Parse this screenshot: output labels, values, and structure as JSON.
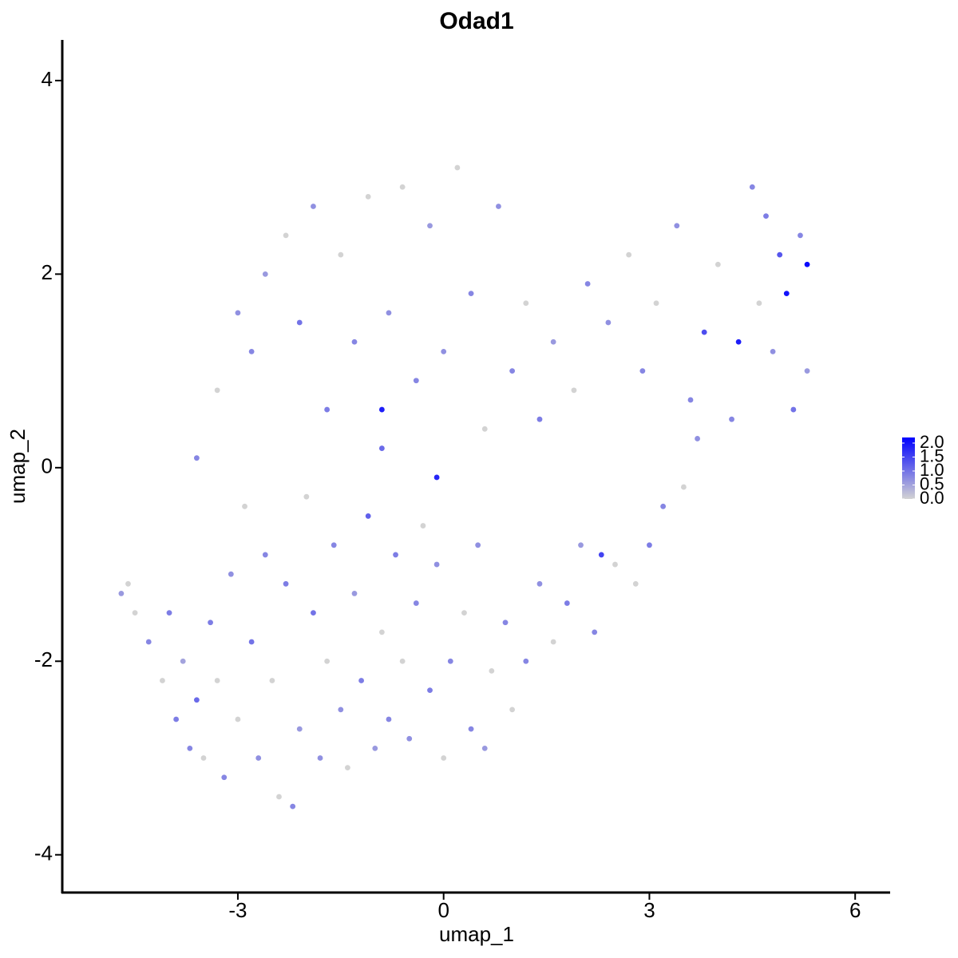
{
  "chart_data": {
    "type": "scatter",
    "title": "Odad1",
    "x_label": "umap_1",
    "y_label": "umap_2",
    "x": [
      -4.7,
      -4.6,
      -4.5,
      -4.3,
      -4.1,
      -4.0,
      -3.9,
      -3.8,
      -3.7,
      -3.6,
      -3.5,
      -3.4,
      -3.3,
      -3.2,
      -3.1,
      -3.0,
      -2.9,
      -2.8,
      -2.7,
      -2.6,
      -2.5,
      -2.4,
      -2.3,
      -2.2,
      -2.1,
      -2.0,
      -1.9,
      -1.8,
      -1.7,
      -1.6,
      -1.5,
      -1.4,
      -1.3,
      -1.2,
      -1.1,
      -1.0,
      -0.9,
      -0.8,
      -0.7,
      -0.6,
      -0.5,
      -0.4,
      -0.3,
      -0.2,
      -0.1,
      0.0,
      0.1,
      0.3,
      0.4,
      0.5,
      0.6,
      0.7,
      0.9,
      1.0,
      1.2,
      1.4,
      1.6,
      1.8,
      2.0,
      2.2,
      2.5,
      2.8,
      3.0,
      3.2,
      3.5,
      3.7,
      -3.6,
      -3.3,
      -3.0,
      -2.8,
      -2.6,
      -2.3,
      -2.1,
      -1.9,
      -1.7,
      -1.5,
      -1.3,
      -1.1,
      -0.9,
      -0.8,
      -0.6,
      -0.4,
      -0.2,
      0.0,
      0.2,
      0.4,
      0.6,
      0.8,
      1.0,
      1.2,
      1.4,
      1.6,
      1.9,
      2.1,
      2.4,
      2.7,
      2.9,
      3.1,
      3.4,
      3.6,
      3.8,
      4.0,
      4.2,
      4.3,
      4.5,
      4.6,
      4.7,
      4.8,
      4.9,
      5.0,
      5.1,
      5.2,
      5.3,
      5.3,
      -0.9,
      -0.1,
      2.3
    ],
    "values": [
      -1.3,
      -1.2,
      -1.5,
      -1.8,
      -2.2,
      -1.5,
      -2.6,
      -2.0,
      -2.9,
      -2.4,
      -3.0,
      -1.6,
      -2.2,
      -3.2,
      -1.1,
      -2.6,
      -0.4,
      -1.8,
      -3.0,
      -0.9,
      -2.2,
      -3.4,
      -1.2,
      -3.5,
      -2.7,
      -0.3,
      -1.5,
      -3.0,
      -2.0,
      -0.8,
      -2.5,
      -3.1,
      -1.3,
      -2.2,
      -0.5,
      -2.9,
      -1.7,
      -2.6,
      -0.9,
      -2.0,
      -2.8,
      -1.4,
      -0.6,
      -2.3,
      -1.0,
      -3.0,
      -2.0,
      -1.5,
      -2.7,
      -0.8,
      -2.9,
      -2.1,
      -1.6,
      -2.5,
      -2.0,
      -1.2,
      -1.8,
      -1.4,
      -0.8,
      -1.7,
      -1.0,
      -1.2,
      -0.8,
      -0.4,
      -0.2,
      0.3,
      0.1,
      0.8,
      1.6,
      1.2,
      2.0,
      2.4,
      1.5,
      2.7,
      0.6,
      2.2,
      1.3,
      2.8,
      0.2,
      1.6,
      2.9,
      0.9,
      2.5,
      1.2,
      3.1,
      1.8,
      0.4,
      2.7,
      1.0,
      1.7,
      0.5,
      1.3,
      0.8,
      1.9,
      1.5,
      2.2,
      1.0,
      1.7,
      2.5,
      0.7,
      1.4,
      2.1,
      0.5,
      1.3,
      2.9,
      1.7,
      2.6,
      1.2,
      2.2,
      1.8,
      0.6,
      2.4,
      2.1,
      1.0,
      0.6,
      -0.1,
      -0.9
    ],
    "expression": [
      0.6,
      0.0,
      0.0,
      0.8,
      0.0,
      0.9,
      0.9,
      0.5,
      0.8,
      1.1,
      0.0,
      0.9,
      0.0,
      0.8,
      0.7,
      0.0,
      0.0,
      1.0,
      0.7,
      0.8,
      0.0,
      0.0,
      0.9,
      0.8,
      0.6,
      0.0,
      1.0,
      0.7,
      0.0,
      0.8,
      0.7,
      0.0,
      0.6,
      0.9,
      1.2,
      0.6,
      0.0,
      0.8,
      0.9,
      0.0,
      0.7,
      0.8,
      0.0,
      0.9,
      0.7,
      0.0,
      0.8,
      0.0,
      0.8,
      0.7,
      0.6,
      0.0,
      0.8,
      0.0,
      0.8,
      0.7,
      0.0,
      0.9,
      0.6,
      0.8,
      0.0,
      0.0,
      0.9,
      0.8,
      0.0,
      0.7,
      0.8,
      0.0,
      0.7,
      0.8,
      0.6,
      0.0,
      1.0,
      0.7,
      0.9,
      0.0,
      0.8,
      0.0,
      1.1,
      0.7,
      0.0,
      0.8,
      0.6,
      0.7,
      0.0,
      0.8,
      0.0,
      0.7,
      0.8,
      0.0,
      0.9,
      0.6,
      0.0,
      0.8,
      0.7,
      0.0,
      0.8,
      0.0,
      0.7,
      0.8,
      1.4,
      0.0,
      0.8,
      1.9,
      0.8,
      0.0,
      0.9,
      0.7,
      1.3,
      2.0,
      1.0,
      0.8,
      2.1,
      0.6,
      1.9,
      1.8,
      1.5
    ],
    "xlim": [
      -5.56,
      6.51
    ],
    "ylim": [
      -4.39,
      4.42
    ],
    "xticks": [
      -3,
      0,
      3,
      6
    ],
    "yticks": [
      -4,
      -2,
      0,
      2,
      4
    ],
    "color_low": "#d3d3d3",
    "color_high": "#0000ff",
    "colorlim": [
      0,
      2.2
    ],
    "colorticks": [
      {
        "value": 0,
        "label": "0.0"
      },
      0.5,
      {
        "value": 1,
        "label": "1.0"
      },
      1.5,
      {
        "value": 2,
        "label": "2.0"
      }
    ]
  }
}
